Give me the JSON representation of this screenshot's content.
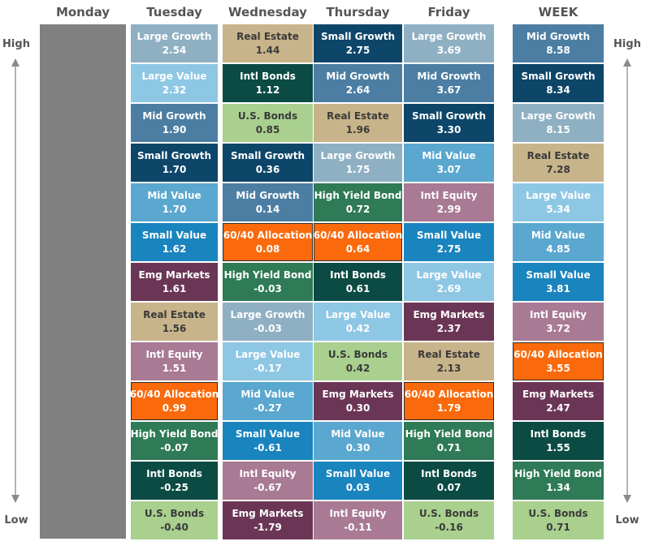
{
  "colors": {
    "Large Growth": "#8fb0c2",
    "Large Value": "#8ec7e4",
    "Mid Growth": "#4c7ea3",
    "Mid Value": "#5aa7cf",
    "Small Growth": "#0d4669",
    "Small Value": "#1a84be",
    "Real Estate": "#c8b48a",
    "Intl Bonds": "#0b4b43",
    "U.S. Bonds": "#a9d08e",
    "High Yield Bond": "#2f7a57",
    "60/40 Allocation": "#fa6a0c",
    "Emg Markets": "#6b3656",
    "Intl Equity": "#a87a93"
  },
  "dark_text_categories": [
    "Real Estate",
    "U.S. Bonds"
  ],
  "labels": {
    "high": "High",
    "low": "Low"
  },
  "chart_data": {
    "type": "table",
    "columns": [
      {
        "key": "monday",
        "header": "Monday",
        "closed": true,
        "cells": []
      },
      {
        "key": "tuesday",
        "header": "Tuesday",
        "cells": [
          {
            "name": "Large Growth",
            "value": "2.54"
          },
          {
            "name": "Large Value",
            "value": "2.32"
          },
          {
            "name": "Mid Growth",
            "value": "1.90"
          },
          {
            "name": "Small Growth",
            "value": "1.70"
          },
          {
            "name": "Mid Value",
            "value": "1.70"
          },
          {
            "name": "Small Value",
            "value": "1.62"
          },
          {
            "name": "Emg Markets",
            "value": "1.61"
          },
          {
            "name": "Real Estate",
            "value": "1.56"
          },
          {
            "name": "Intl Equity",
            "value": "1.51"
          },
          {
            "name": "60/40 Allocation",
            "value": "0.99"
          },
          {
            "name": "High Yield Bond",
            "value": "-0.07"
          },
          {
            "name": "Intl Bonds",
            "value": "-0.25"
          },
          {
            "name": "U.S. Bonds",
            "value": "-0.40"
          }
        ]
      },
      {
        "key": "wednesday",
        "header": "Wednesday",
        "cells": [
          {
            "name": "Real Estate",
            "value": "1.44"
          },
          {
            "name": "Intl Bonds",
            "value": "1.12"
          },
          {
            "name": "U.S. Bonds",
            "value": "0.85"
          },
          {
            "name": "Small Growth",
            "value": "0.36"
          },
          {
            "name": "Mid Growth",
            "value": "0.14"
          },
          {
            "name": "60/40 Allocation",
            "value": "0.08"
          },
          {
            "name": "High Yield Bond",
            "value": "-0.03"
          },
          {
            "name": "Large Growth",
            "value": "-0.03"
          },
          {
            "name": "Large Value",
            "value": "-0.17"
          },
          {
            "name": "Mid Value",
            "value": "-0.27"
          },
          {
            "name": "Small Value",
            "value": "-0.61"
          },
          {
            "name": "Intl Equity",
            "value": "-0.67"
          },
          {
            "name": "Emg Markets",
            "value": "-1.79"
          }
        ]
      },
      {
        "key": "thursday",
        "header": "Thursday",
        "cells": [
          {
            "name": "Small Growth",
            "value": "2.75"
          },
          {
            "name": "Mid Growth",
            "value": "2.64"
          },
          {
            "name": "Real Estate",
            "value": "1.96"
          },
          {
            "name": "Large Growth",
            "value": "1.75"
          },
          {
            "name": "High Yield Bond",
            "value": "0.72"
          },
          {
            "name": "60/40 Allocation",
            "value": "0.64"
          },
          {
            "name": "Intl Bonds",
            "value": "0.61"
          },
          {
            "name": "Large Value",
            "value": "0.42"
          },
          {
            "name": "U.S. Bonds",
            "value": "0.42"
          },
          {
            "name": "Emg Markets",
            "value": "0.30"
          },
          {
            "name": "Mid Value",
            "value": "0.30"
          },
          {
            "name": "Small Value",
            "value": "0.03"
          },
          {
            "name": "Intl Equity",
            "value": "-0.11"
          }
        ]
      },
      {
        "key": "friday",
        "header": "Friday",
        "cells": [
          {
            "name": "Large Growth",
            "value": "3.69"
          },
          {
            "name": "Mid Growth",
            "value": "3.67"
          },
          {
            "name": "Small Growth",
            "value": "3.30"
          },
          {
            "name": "Mid Value",
            "value": "3.07"
          },
          {
            "name": "Intl Equity",
            "value": "2.99"
          },
          {
            "name": "Small Value",
            "value": "2.75"
          },
          {
            "name": "Large Value",
            "value": "2.69"
          },
          {
            "name": "Emg Markets",
            "value": "2.37"
          },
          {
            "name": "Real Estate",
            "value": "2.13"
          },
          {
            "name": "60/40 Allocation",
            "value": "1.79"
          },
          {
            "name": "High Yield Bond",
            "value": "0.71"
          },
          {
            "name": "Intl Bonds",
            "value": "0.07"
          },
          {
            "name": "U.S. Bonds",
            "value": "-0.16"
          }
        ]
      },
      {
        "key": "week",
        "header": "WEEK",
        "cells": [
          {
            "name": "Mid Growth",
            "value": "8.58"
          },
          {
            "name": "Small Growth",
            "value": "8.34"
          },
          {
            "name": "Large Growth",
            "value": "8.15"
          },
          {
            "name": "Real Estate",
            "value": "7.28"
          },
          {
            "name": "Large Value",
            "value": "5.34"
          },
          {
            "name": "Mid Value",
            "value": "4.85"
          },
          {
            "name": "Small Value",
            "value": "3.81"
          },
          {
            "name": "Intl Equity",
            "value": "3.72"
          },
          {
            "name": "60/40 Allocation",
            "value": "3.55"
          },
          {
            "name": "Emg Markets",
            "value": "2.47"
          },
          {
            "name": "Intl Bonds",
            "value": "1.55"
          },
          {
            "name": "High Yield Bond",
            "value": "1.34"
          },
          {
            "name": "U.S. Bonds",
            "value": "0.71"
          }
        ]
      }
    ]
  }
}
